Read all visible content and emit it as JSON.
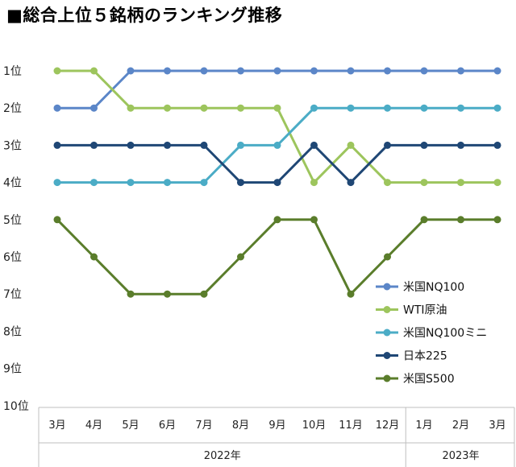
{
  "title": "■総合上位５銘柄のランキング推移",
  "chart_data": {
    "type": "line",
    "title": "■総合上位５銘柄のランキング推移",
    "categories": [
      "3月",
      "4月",
      "5月",
      "6月",
      "7月",
      "8月",
      "9月",
      "10月",
      "11月",
      "12月",
      "1月",
      "2月",
      "3月"
    ],
    "year_groups": [
      {
        "label": "2022年",
        "count": 10
      },
      {
        "label": "2023年",
        "count": 3
      }
    ],
    "y_tick_labels": [
      "1位",
      "2位",
      "3位",
      "4位",
      "5位",
      "6位",
      "7位",
      "8位",
      "9位",
      "10位"
    ],
    "ylim": [
      1,
      10
    ],
    "y_inverted": true,
    "grid": false,
    "legend_position": "right",
    "series": [
      {
        "name": "米国NQ100",
        "color": "#5b86c8",
        "values": [
          2,
          2,
          1,
          1,
          1,
          1,
          1,
          1,
          1,
          1,
          1,
          1,
          1
        ]
      },
      {
        "name": "WTI原油",
        "color": "#9dc55d",
        "values": [
          1,
          1,
          2,
          2,
          2,
          2,
          2,
          4,
          3,
          4,
          4,
          4,
          4
        ]
      },
      {
        "name": "米国NQ100ミニ",
        "color": "#4bacc6",
        "values": [
          4,
          4,
          4,
          4,
          4,
          3,
          3,
          2,
          2,
          2,
          2,
          2,
          2
        ]
      },
      {
        "name": "日本225",
        "color": "#1f4775",
        "values": [
          3,
          3,
          3,
          3,
          3,
          4,
          4,
          3,
          4,
          3,
          3,
          3,
          3
        ]
      },
      {
        "name": "米国S500",
        "color": "#5a7d2b",
        "values": [
          5,
          6,
          7,
          7,
          7,
          6,
          5,
          5,
          7,
          6,
          5,
          5,
          5
        ]
      }
    ]
  }
}
